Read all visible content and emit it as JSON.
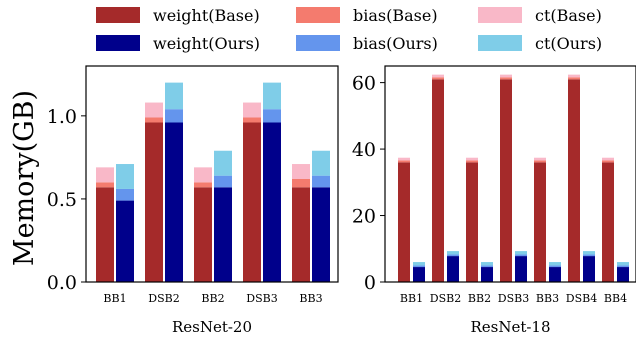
{
  "chart_data": [
    {
      "type": "bar",
      "stacked": true,
      "xlabel": "ResNet-20",
      "ylabel": "Memory(GB)",
      "ylim": [
        0,
        1.3
      ],
      "yticks": [
        "0.0",
        "0.5",
        "1.0"
      ],
      "categories": [
        "BB1",
        "DSB2",
        "BB2",
        "DSB3",
        "BB3"
      ],
      "groups": [
        {
          "name": "Base",
          "series": [
            {
              "name": "weight(Base)",
              "color": "#a52a2a",
              "values": [
                0.57,
                0.96,
                0.57,
                0.96,
                0.57
              ]
            },
            {
              "name": "bias(Base)",
              "color": "#f47b6e",
              "values": [
                0.03,
                0.03,
                0.03,
                0.03,
                0.05
              ]
            },
            {
              "name": "ct(Base)",
              "color": "#f9b8c8",
              "values": [
                0.09,
                0.09,
                0.09,
                0.09,
                0.09
              ]
            }
          ]
        },
        {
          "name": "Ours",
          "series": [
            {
              "name": "weight(Ours)",
              "color": "#00008b",
              "values": [
                0.49,
                0.96,
                0.57,
                0.96,
                0.57
              ]
            },
            {
              "name": "bias(Ours)",
              "color": "#6495ed",
              "values": [
                0.07,
                0.08,
                0.07,
                0.08,
                0.07
              ]
            },
            {
              "name": "ct(Ours)",
              "color": "#7fcde8",
              "values": [
                0.15,
                0.16,
                0.15,
                0.16,
                0.15
              ]
            }
          ]
        }
      ]
    },
    {
      "type": "bar",
      "stacked": true,
      "xlabel": "ResNet-18",
      "ylabel": "",
      "ylim": [
        0,
        65
      ],
      "yticks": [
        "0",
        "20",
        "40",
        "60"
      ],
      "categories": [
        "BB1",
        "DSB2",
        "BB2",
        "DSB3",
        "BB3",
        "DSB4",
        "BB4"
      ],
      "groups": [
        {
          "name": "Base",
          "series": [
            {
              "name": "weight(Base)",
              "color": "#a52a2a",
              "values": [
                36,
                61,
                36,
                61,
                36,
                61,
                36
              ]
            },
            {
              "name": "bias(Base)",
              "color": "#f47b6e",
              "values": [
                0.6,
                0.6,
                0.6,
                0.6,
                0.6,
                0.6,
                0.6
              ]
            },
            {
              "name": "ct(Base)",
              "color": "#f9b8c8",
              "values": [
                0.8,
                0.8,
                0.8,
                0.8,
                0.8,
                0.8,
                0.8
              ]
            }
          ]
        },
        {
          "name": "Ours",
          "series": [
            {
              "name": "weight(Ours)",
              "color": "#00008b",
              "values": [
                4.5,
                7.8,
                4.5,
                7.8,
                4.5,
                7.8,
                4.5
              ]
            },
            {
              "name": "bias(Ours)",
              "color": "#6495ed",
              "values": [
                0.5,
                0.5,
                0.5,
                0.5,
                0.5,
                0.5,
                0.5
              ]
            },
            {
              "name": "ct(Ours)",
              "color": "#7fcde8",
              "values": [
                1.0,
                1.0,
                1.0,
                1.0,
                1.0,
                1.0,
                1.0
              ]
            }
          ]
        }
      ]
    }
  ],
  "legend": {
    "placement": "top",
    "items": [
      {
        "label": "weight(Base)",
        "color": "#a52a2a"
      },
      {
        "label": "bias(Base)",
        "color": "#f47b6e"
      },
      {
        "label": "ct(Base)",
        "color": "#f9b8c8"
      },
      {
        "label": "weight(Ours)",
        "color": "#00008b"
      },
      {
        "label": "bias(Ours)",
        "color": "#6495ed"
      },
      {
        "label": "ct(Ours)",
        "color": "#7fcde8"
      }
    ]
  }
}
